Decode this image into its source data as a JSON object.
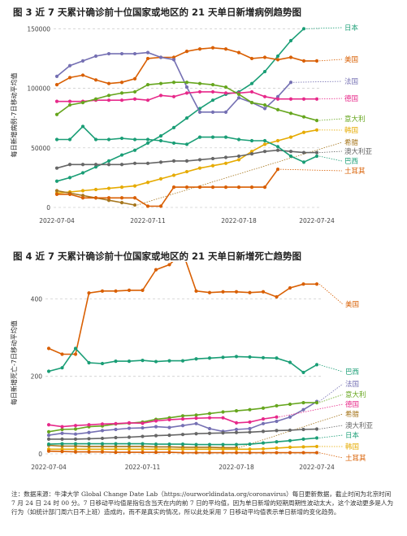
{
  "figure3": {
    "title": "图 3  近 7 天累计确诊前十位国家或地区的 21 天单日新增病例趋势图",
    "chart_data": {
      "type": "line",
      "ylabel": "每日新增病例-7日移动平均值",
      "ylim": [
        0,
        155000
      ],
      "yticks": [
        0,
        50000,
        100000,
        150000
      ],
      "xticks": [
        "2022-07-04",
        "2022-07-11",
        "2022-07-18",
        "2022-07-24"
      ],
      "x": [
        "07-04",
        "07-05",
        "07-06",
        "07-07",
        "07-08",
        "07-09",
        "07-10",
        "07-11",
        "07-12",
        "07-13",
        "07-14",
        "07-15",
        "07-16",
        "07-17",
        "07-18",
        "07-19",
        "07-20",
        "07-21",
        "07-22",
        "07-23",
        "07-24"
      ],
      "grid": "horizontal dashed",
      "series": [
        {
          "name": "日本",
          "color": "#1a9e76",
          "values": [
            22000,
            25000,
            29000,
            34000,
            39000,
            44000,
            48000,
            54000,
            60000,
            67000,
            75000,
            83000,
            90000,
            95000,
            97000,
            104000,
            114000,
            127000,
            140000,
            150000,
            null
          ]
        },
        {
          "name": "美国",
          "color": "#d95f02",
          "values": [
            103000,
            109000,
            111000,
            107000,
            104000,
            105000,
            108000,
            125000,
            126000,
            126000,
            131000,
            133000,
            134000,
            133000,
            130000,
            125000,
            126000,
            124000,
            126000,
            123000,
            123000
          ]
        },
        {
          "name": "法国",
          "color": "#7570b3",
          "values": [
            110000,
            119000,
            123000,
            127000,
            129000,
            129000,
            129000,
            130000,
            126000,
            124000,
            101000,
            80000,
            80000,
            80000,
            92000,
            88000,
            83000,
            93000,
            105000,
            null,
            null
          ]
        },
        {
          "name": "德国",
          "color": "#e7298a",
          "values": [
            89000,
            89000,
            89000,
            90000,
            90000,
            90000,
            91000,
            90000,
            94000,
            93000,
            96000,
            97000,
            97000,
            96000,
            96000,
            97000,
            93000,
            91000,
            91000,
            91000,
            91000
          ]
        },
        {
          "name": "意大利",
          "color": "#66a61e",
          "values": [
            78000,
            86000,
            88000,
            91000,
            94000,
            96000,
            97000,
            103000,
            104000,
            105000,
            105000,
            104000,
            103000,
            101000,
            95000,
            88000,
            86000,
            82000,
            79000,
            76000,
            73000
          ]
        },
        {
          "name": "韩国",
          "color": "#e6ab02",
          "values": [
            12000,
            13000,
            14000,
            15000,
            16000,
            17000,
            18000,
            21000,
            24000,
            27000,
            30000,
            33000,
            35000,
            37000,
            40000,
            47000,
            53000,
            56000,
            59000,
            63000,
            65000
          ]
        },
        {
          "name": "希腊",
          "color": "#a6761d",
          "values": [
            14000,
            12000,
            10000,
            8000,
            6000,
            4000,
            2000,
            null,
            null,
            null,
            null,
            null,
            null,
            null,
            null,
            null,
            null,
            null,
            null,
            null,
            null
          ]
        },
        {
          "name": "澳大利亚",
          "color": "#666666",
          "values": [
            33000,
            36000,
            36000,
            36000,
            36000,
            36000,
            37000,
            37000,
            38000,
            39000,
            39000,
            40000,
            41000,
            42000,
            43000,
            45000,
            47000,
            48000,
            47000,
            46000,
            46000
          ]
        },
        {
          "name": "巴西",
          "color": "#1a9e76",
          "values": [
            57000,
            57000,
            68000,
            57000,
            57000,
            58000,
            57000,
            57000,
            56000,
            54000,
            53000,
            59000,
            59000,
            59000,
            57000,
            56000,
            56000,
            51000,
            43000,
            38000,
            43000
          ]
        },
        {
          "name": "土耳其",
          "color": "#d95f02",
          "values": [
            11000,
            11000,
            8000,
            8000,
            8000,
            8000,
            8000,
            1000,
            1000,
            17000,
            17000,
            17000,
            17000,
            17000,
            17000,
            17000,
            17000,
            32000,
            null,
            null,
            null
          ]
        }
      ],
      "legend": [
        "日本",
        "美国",
        "法国",
        "德国",
        "意大利",
        "韩国",
        "希腊",
        "澳大利亚",
        "巴西",
        "土耳其"
      ]
    }
  },
  "figure4": {
    "title": "图 4  近 7 天累计确诊前十位国家或地区的 21 天单日新增死亡趋势图",
    "chart_data": {
      "type": "line",
      "ylabel": "每日新增死亡-7日移动平均值",
      "ylim": [
        0,
        470
      ],
      "yticks": [
        0,
        200,
        400
      ],
      "xticks": [
        "2022-07-04",
        "2022-07-11",
        "2022-07-18",
        "2022-07-24"
      ],
      "x": [
        "07-04",
        "07-05",
        "07-06",
        "07-07",
        "07-08",
        "07-09",
        "07-10",
        "07-11",
        "07-12",
        "07-13",
        "07-14",
        "07-15",
        "07-16",
        "07-17",
        "07-18",
        "07-19",
        "07-20",
        "07-21",
        "07-22",
        "07-23",
        "07-24"
      ],
      "grid": "horizontal dashed",
      "series": [
        {
          "name": "美国",
          "color": "#d95f02",
          "values": [
            272,
            257,
            257,
            415,
            420,
            420,
            422,
            422,
            475,
            488,
            520,
            420,
            416,
            418,
            418,
            416,
            418,
            405,
            428,
            438,
            438
          ]
        },
        {
          "name": "巴西",
          "color": "#1a9e76",
          "values": [
            213,
            222,
            272,
            235,
            233,
            239,
            239,
            241,
            238,
            240,
            240,
            245,
            247,
            249,
            251,
            250,
            248,
            247,
            236,
            210,
            230
          ]
        },
        {
          "name": "法国",
          "color": "#7570b3",
          "values": [
            48,
            53,
            51,
            55,
            60,
            63,
            66,
            67,
            70,
            68,
            73,
            78,
            65,
            58,
            63,
            65,
            78,
            84,
            95,
            114,
            135
          ]
        },
        {
          "name": "意大利",
          "color": "#66a61e",
          "values": [
            57,
            63,
            64,
            70,
            72,
            77,
            79,
            82,
            89,
            93,
            98,
            100,
            104,
            108,
            111,
            114,
            118,
            124,
            128,
            132,
            132
          ]
        },
        {
          "name": "德国",
          "color": "#e7298a",
          "values": [
            75,
            70,
            73,
            75,
            77,
            78,
            80,
            79,
            85,
            88,
            90,
            92,
            93,
            93,
            80,
            82,
            90,
            95,
            null,
            null,
            null
          ]
        },
        {
          "name": "希腊",
          "color": "#a6761d",
          "values": [
            22,
            20,
            20,
            19,
            19,
            19,
            19,
            19,
            18,
            18,
            17,
            17,
            17,
            16,
            16,
            null,
            null,
            null,
            null,
            null,
            null
          ]
        },
        {
          "name": "澳大利亚",
          "color": "#666666",
          "values": [
            38,
            38,
            38,
            39,
            40,
            42,
            43,
            45,
            47,
            48,
            50,
            52,
            53,
            54,
            55,
            56,
            58,
            60,
            61,
            63,
            64
          ]
        },
        {
          "name": "日本",
          "color": "#1a9e76",
          "values": [
            25,
            26,
            26,
            26,
            26,
            26,
            26,
            26,
            25,
            25,
            25,
            24,
            24,
            24,
            24,
            25,
            28,
            31,
            34,
            38,
            41
          ]
        },
        {
          "name": "韩国",
          "color": "#e6ab02",
          "values": [
            12,
            12,
            12,
            12,
            12,
            12,
            12,
            12,
            12,
            12,
            12,
            12,
            12,
            12,
            12,
            12,
            13,
            15,
            17,
            18,
            19
          ]
        },
        {
          "name": "土耳其",
          "color": "#d95f02",
          "values": [
            7,
            6,
            5,
            5,
            5,
            4,
            4,
            4,
            4,
            4,
            3,
            3,
            3,
            3,
            3,
            3,
            3,
            3,
            3,
            3,
            3
          ]
        }
      ],
      "legend": [
        "美国",
        "巴西",
        "法国",
        "意大利",
        "德国",
        "希腊",
        "澳大利亚",
        "日本",
        "韩国",
        "土耳其"
      ]
    }
  },
  "footnote": "注：数据来源：牛津大学 Global Change Date Lab（https://ourworldindata.org/coronavirus）每日更新数据，截止时间为北京时间 7 月 24 日 24 时 00 分。7 日移动平均值是指包含当天在内的前 7 日的平均值，因为单日新增的短期周期性波动太大，这个波动更多是人为行为（如统计部门周六日不上班）造成的，而不是真实的情况，所以此处采用 7 日移动平均值表示单日新增的变化趋势。"
}
